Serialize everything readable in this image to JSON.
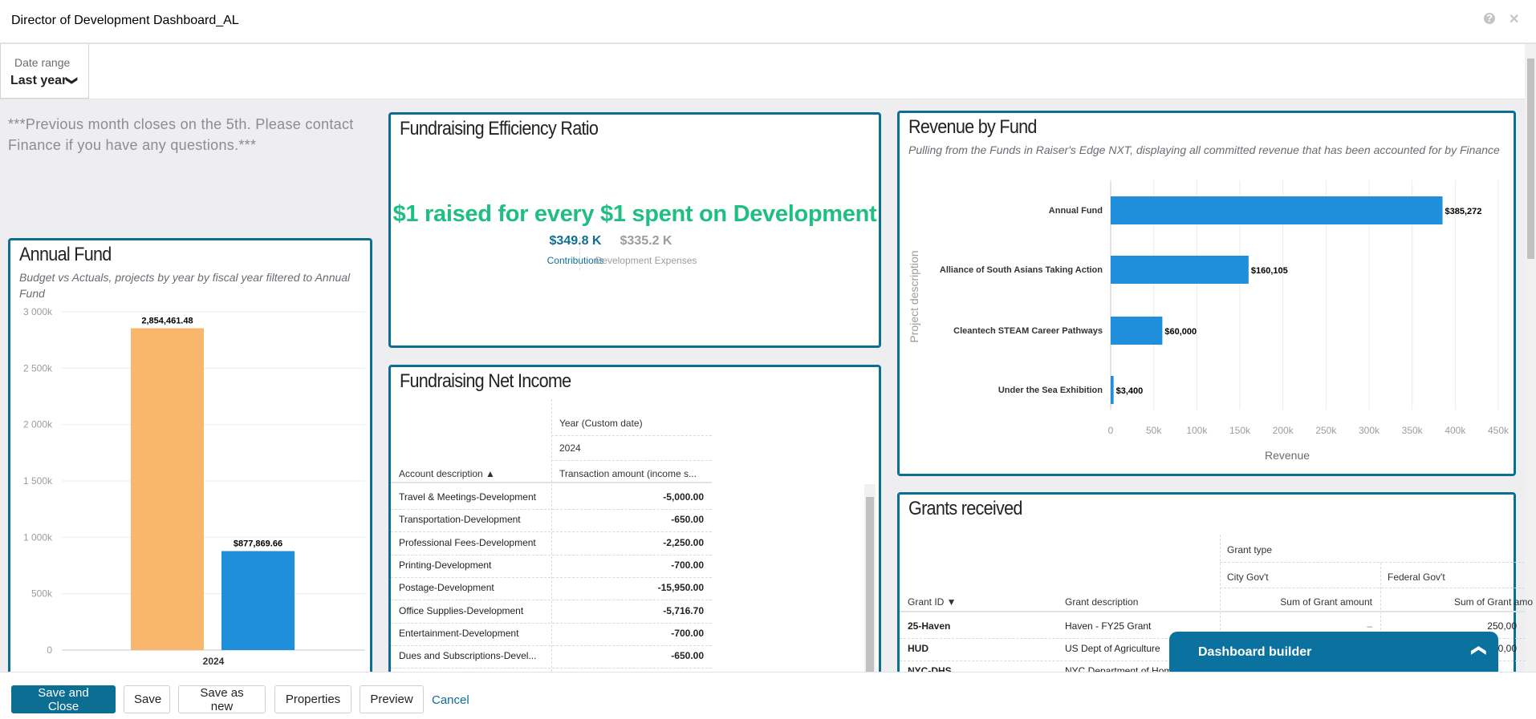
{
  "window": {
    "title": "Director of Development Dashboard_AL",
    "help_icon": "help-icon",
    "close_icon": "close-icon"
  },
  "filter": {
    "label": "Date range",
    "value": "Last year"
  },
  "note": "***Previous month closes on the 5th. Please contact Finance if you have any questions.***",
  "annual_fund": {
    "title": "Annual Fund",
    "subtitle": "Budget vs Actuals, projects by year by fiscal year filtered to Annual Fund",
    "chart_data": {
      "type": "bar",
      "categories": [
        "2024"
      ],
      "series": [
        {
          "values": [
            2854461.48
          ],
          "label": "2,854,461.48",
          "color": "#f8b76c"
        },
        {
          "values": [
            877869.66
          ],
          "label": "$877,869.66",
          "color": "#1f8fdb"
        }
      ],
      "ylim": [
        0,
        3000000
      ],
      "yticks": [
        "0",
        "500k",
        "1 000k",
        "1 500k",
        "2 000k",
        "2 500k",
        "3 000k"
      ],
      "grid": true
    }
  },
  "efficiency": {
    "title": "Fundraising Efficiency Ratio",
    "headline": "$1 raised for every $1 spent on Development",
    "contrib_value": "$349.8 K",
    "contrib_label": "Contributions",
    "expense_value": "$335.2 K",
    "expense_label": "Development Expenses",
    "colors": {
      "headline": "#1fbf83",
      "contrib": "#0d6e94",
      "expense": "#9a9ca0"
    }
  },
  "net_income": {
    "title": "Fundraising Net Income",
    "col_group": "Year (Custom date)",
    "year": "2024",
    "row_header": "Account description ▲",
    "value_header": "Transaction amount (income s...",
    "rows": [
      {
        "account": "Travel & Meetings-Development",
        "amount": "-5,000.00"
      },
      {
        "account": "Transportation-Development",
        "amount": "-650.00"
      },
      {
        "account": "Professional Fees-Development",
        "amount": "-2,250.00"
      },
      {
        "account": "Printing-Development",
        "amount": "-700.00"
      },
      {
        "account": "Postage-Development",
        "amount": "-15,950.00"
      },
      {
        "account": "Office Supplies-Development",
        "amount": "-5,716.70"
      },
      {
        "account": "Entertainment-Development",
        "amount": "-700.00"
      },
      {
        "account": "Dues and Subscriptions-Devel...",
        "amount": "-650.00"
      }
    ]
  },
  "revenue": {
    "title": "Revenue by Fund",
    "subtitle": "Pulling from the Funds in Raiser's Edge NXT, displaying all committed revenue that has been accounted for by Finance",
    "chart_data": {
      "type": "bar",
      "orientation": "horizontal",
      "categories": [
        "Annual Fund",
        "Alliance of South Asians Taking Action",
        "Cleantech STEAM Career Pathways",
        "Under the Sea Exhibition"
      ],
      "values": [
        385272,
        160105,
        60000,
        3400
      ],
      "labels": [
        "$385,272",
        "$160,105",
        "$60,000",
        "$3,400"
      ],
      "xlabel": "Revenue",
      "ylabel": "Project description",
      "xlim": [
        0,
        450000
      ],
      "xticks": [
        "0",
        "50k",
        "100k",
        "150k",
        "200k",
        "250k",
        "300k",
        "350k",
        "400k",
        "450k"
      ],
      "color": "#1f8fdb",
      "grid": true
    }
  },
  "grants": {
    "title": "Grants received",
    "col_group": "Grant type",
    "types": [
      "City Gov't",
      "Federal Gov't"
    ],
    "id_header": "Grant ID ▼",
    "desc_header": "Grant description",
    "sum_headers": [
      "Sum of Grant amount",
      "Sum of Grant amo"
    ],
    "rows": [
      {
        "id": "25-Haven",
        "desc": "Haven - FY25 Grant",
        "city": "–",
        "federal": "250,00"
      },
      {
        "id": "HUD",
        "desc": "US Dept of Agriculture",
        "city": "",
        "federal": "0,00"
      },
      {
        "id": "NYC-DHS",
        "desc": "NYC Department of Hom",
        "city": "",
        "federal": ""
      }
    ]
  },
  "builder": {
    "label": "Dashboard builder",
    "icon": "chevron-up-icon"
  },
  "actions": {
    "save_close": "Save and Close",
    "save": "Save",
    "save_new": "Save as new",
    "properties": "Properties",
    "preview": "Preview",
    "cancel": "Cancel"
  }
}
